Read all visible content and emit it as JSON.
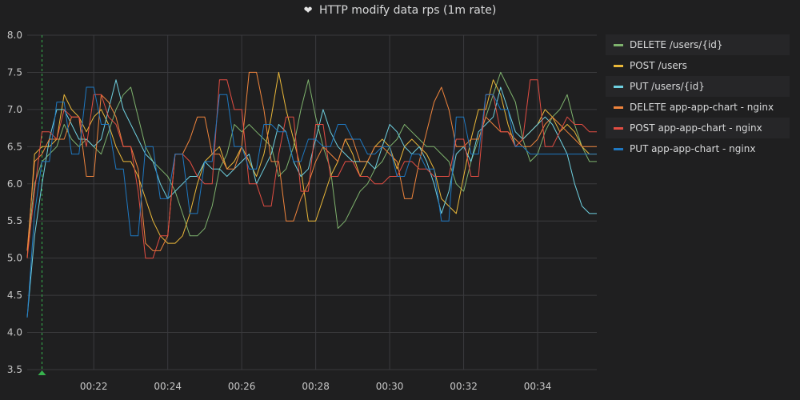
{
  "title": "HTTP modify data rps (1m rate)",
  "title_icon": "heart-icon",
  "chart_data": {
    "type": "line",
    "ylim": [
      3.5,
      8.0
    ],
    "y_ticks": [
      "3.5",
      "4.0",
      "4.5",
      "5.0",
      "5.5",
      "6.0",
      "6.5",
      "7.0",
      "7.5",
      "8.0"
    ],
    "x_ticks": [
      "00:22",
      "00:24",
      "00:26",
      "00:28",
      "00:30",
      "00:32",
      "00:34"
    ],
    "x_tick_minutes": [
      22,
      24,
      26,
      28,
      30,
      32,
      34
    ],
    "xlim_minutes": [
      20.2,
      35.6
    ],
    "annotation_marker_minute": 20.6,
    "grid": true,
    "legend": "right",
    "x": [
      20.2,
      20.4,
      20.6,
      20.8,
      21.0,
      21.2,
      21.4,
      21.6,
      21.8,
      22.0,
      22.2,
      22.4,
      22.6,
      22.8,
      23.0,
      23.2,
      23.4,
      23.6,
      23.8,
      24.0,
      24.2,
      24.4,
      24.6,
      24.8,
      25.0,
      25.2,
      25.4,
      25.6,
      25.8,
      26.0,
      26.2,
      26.4,
      26.6,
      26.8,
      27.0,
      27.2,
      27.4,
      27.6,
      27.8,
      28.0,
      28.2,
      28.4,
      28.6,
      28.8,
      29.0,
      29.2,
      29.4,
      29.6,
      29.8,
      30.0,
      30.2,
      30.4,
      30.6,
      30.8,
      31.0,
      31.2,
      31.4,
      31.6,
      31.8,
      32.0,
      32.2,
      32.4,
      32.6,
      32.8,
      33.0,
      33.2,
      33.4,
      33.6,
      33.8,
      34.0,
      34.2,
      34.4,
      34.6,
      34.8,
      35.0,
      35.2,
      35.4,
      35.6
    ],
    "series": [
      {
        "name": "DELETE /users/{id}",
        "color": "#7eb26d",
        "values": [
          5.1,
          6.0,
          6.3,
          6.4,
          6.5,
          6.8,
          6.6,
          6.5,
          6.6,
          6.5,
          6.4,
          6.7,
          7.0,
          7.2,
          7.3,
          6.9,
          6.5,
          6.3,
          6.2,
          6.1,
          5.9,
          5.6,
          5.3,
          5.3,
          5.4,
          5.7,
          6.2,
          6.4,
          6.8,
          6.7,
          6.8,
          6.7,
          6.6,
          6.5,
          6.1,
          6.2,
          6.5,
          7.0,
          7.4,
          6.9,
          6.5,
          6.2,
          5.4,
          5.5,
          5.7,
          5.9,
          6.0,
          6.2,
          6.3,
          6.5,
          6.6,
          6.8,
          6.7,
          6.6,
          6.5,
          6.5,
          6.4,
          6.3,
          6.0,
          5.9,
          6.3,
          6.6,
          6.9,
          7.2,
          7.5,
          7.3,
          7.1,
          6.6,
          6.3,
          6.4,
          6.7,
          6.9,
          7.0,
          7.2,
          6.8,
          6.5,
          6.3,
          6.3
        ]
      },
      {
        "name": "POST /users",
        "color": "#eab839",
        "values": [
          5.0,
          6.4,
          6.5,
          6.5,
          6.6,
          7.2,
          7.0,
          6.9,
          6.7,
          6.9,
          7.0,
          6.8,
          6.5,
          6.3,
          6.3,
          6.1,
          5.8,
          5.5,
          5.3,
          5.2,
          5.2,
          5.3,
          5.6,
          6.0,
          6.3,
          6.4,
          6.5,
          6.2,
          6.3,
          6.5,
          6.3,
          6.1,
          6.4,
          6.9,
          7.5,
          7.0,
          6.6,
          6.2,
          5.5,
          5.5,
          5.8,
          6.1,
          6.3,
          6.6,
          6.4,
          6.1,
          6.3,
          6.5,
          6.6,
          6.5,
          6.2,
          6.5,
          6.6,
          6.5,
          6.4,
          6.2,
          5.8,
          5.7,
          5.6,
          6.1,
          6.6,
          7.0,
          7.0,
          7.4,
          7.2,
          6.8,
          6.5,
          6.6,
          6.7,
          6.8,
          7.0,
          6.9,
          6.7,
          6.8,
          6.7,
          6.5,
          6.4,
          6.4
        ]
      },
      {
        "name": "PUT /users/{id}",
        "color": "#6ed0e0",
        "values": [
          4.2,
          5.3,
          6.0,
          6.6,
          7.0,
          7.0,
          6.8,
          6.6,
          6.6,
          6.5,
          6.6,
          7.0,
          7.4,
          7.0,
          6.8,
          6.6,
          6.4,
          6.3,
          6.0,
          5.8,
          5.9,
          6.0,
          6.1,
          6.1,
          6.3,
          6.2,
          6.2,
          6.1,
          6.2,
          6.3,
          6.4,
          6.0,
          6.2,
          6.4,
          6.8,
          6.7,
          6.3,
          6.1,
          6.2,
          6.6,
          7.0,
          6.7,
          6.5,
          6.4,
          6.3,
          6.3,
          6.3,
          6.2,
          6.5,
          6.8,
          6.7,
          6.5,
          6.4,
          6.5,
          6.3,
          6.0,
          5.6,
          5.9,
          6.4,
          6.5,
          6.3,
          6.7,
          6.8,
          6.9,
          7.3,
          7.0,
          6.7,
          6.6,
          6.7,
          6.8,
          6.9,
          6.8,
          6.6,
          6.4,
          6.0,
          5.7,
          5.6,
          5.6
        ]
      },
      {
        "name": "DELETE app-app-chart - nginx",
        "color": "#ef843c",
        "values": [
          5.1,
          6.3,
          6.4,
          6.6,
          6.6,
          6.6,
          6.9,
          6.9,
          6.1,
          6.1,
          7.2,
          7.1,
          6.9,
          6.5,
          6.5,
          6.2,
          5.2,
          5.1,
          5.1,
          5.3,
          6.4,
          6.4,
          6.6,
          6.9,
          6.9,
          6.4,
          6.4,
          6.2,
          6.2,
          6.5,
          7.5,
          7.5,
          7.0,
          6.3,
          6.3,
          5.5,
          5.5,
          5.8,
          6.0,
          6.3,
          6.5,
          6.4,
          6.3,
          6.6,
          6.6,
          6.3,
          6.3,
          6.5,
          6.5,
          6.4,
          6.3,
          5.8,
          5.8,
          6.3,
          6.7,
          7.1,
          7.3,
          7.0,
          6.5,
          6.5,
          6.6,
          6.6,
          6.9,
          6.8,
          6.7,
          6.7,
          6.6,
          6.5,
          6.5,
          6.6,
          6.8,
          6.9,
          6.8,
          6.7,
          6.6,
          6.5,
          6.5,
          6.5
        ]
      },
      {
        "name": "POST app-app-chart - nginx",
        "color": "#e24d42",
        "values": [
          5.0,
          5.9,
          6.7,
          6.7,
          6.6,
          7.0,
          6.9,
          6.9,
          6.5,
          7.2,
          7.2,
          6.9,
          6.8,
          6.5,
          6.5,
          5.9,
          5.0,
          5.0,
          5.3,
          5.3,
          6.4,
          6.4,
          6.3,
          6.1,
          6.0,
          6.0,
          7.4,
          7.4,
          7.0,
          7.0,
          6.0,
          6.0,
          5.7,
          5.7,
          6.4,
          6.9,
          6.9,
          5.9,
          5.9,
          6.8,
          6.8,
          6.1,
          6.1,
          6.3,
          6.3,
          6.1,
          6.1,
          6.0,
          6.0,
          6.1,
          6.1,
          6.3,
          6.3,
          6.2,
          6.2,
          6.1,
          6.1,
          6.1,
          6.6,
          6.6,
          6.1,
          6.1,
          7.2,
          7.2,
          6.7,
          6.7,
          6.5,
          6.6,
          7.4,
          7.4,
          6.5,
          6.5,
          6.7,
          6.9,
          6.8,
          6.8,
          6.7,
          6.7
        ]
      },
      {
        "name": "PUT app-app-chart - nginx",
        "color": "#1f78c1",
        "values": [
          4.2,
          5.6,
          6.3,
          6.3,
          7.1,
          7.1,
          6.4,
          6.4,
          7.3,
          7.3,
          6.8,
          6.8,
          6.2,
          6.2,
          5.3,
          5.3,
          6.5,
          6.5,
          5.8,
          5.8,
          6.4,
          6.4,
          5.6,
          5.6,
          6.3,
          6.3,
          7.2,
          7.2,
          6.5,
          6.5,
          6.2,
          6.2,
          6.8,
          6.8,
          6.7,
          6.7,
          6.3,
          6.3,
          6.6,
          6.6,
          6.5,
          6.5,
          6.8,
          6.8,
          6.6,
          6.6,
          6.4,
          6.4,
          6.5,
          6.5,
          6.1,
          6.1,
          6.4,
          6.4,
          6.2,
          6.2,
          5.5,
          5.5,
          6.9,
          6.9,
          6.4,
          6.4,
          7.2,
          7.2,
          7.0,
          7.0,
          6.5,
          6.5,
          6.4,
          6.4,
          6.4,
          6.4,
          6.4,
          6.4,
          6.4,
          6.4,
          6.4,
          6.4
        ]
      }
    ]
  }
}
